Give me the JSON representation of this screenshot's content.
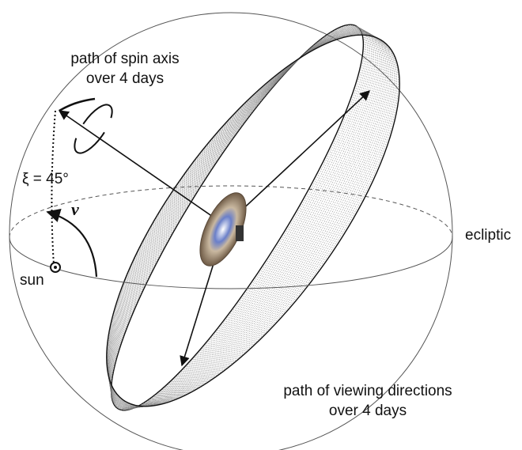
{
  "labels": {
    "spin_axis_path": [
      "path of spin axis",
      "over 4 days"
    ],
    "xi": "ξ = 45°",
    "nu": "ν",
    "sun": "sun",
    "ecliptic": "ecliptic",
    "viewing_path": [
      "path of viewing directions",
      "over 4 days"
    ]
  }
}
